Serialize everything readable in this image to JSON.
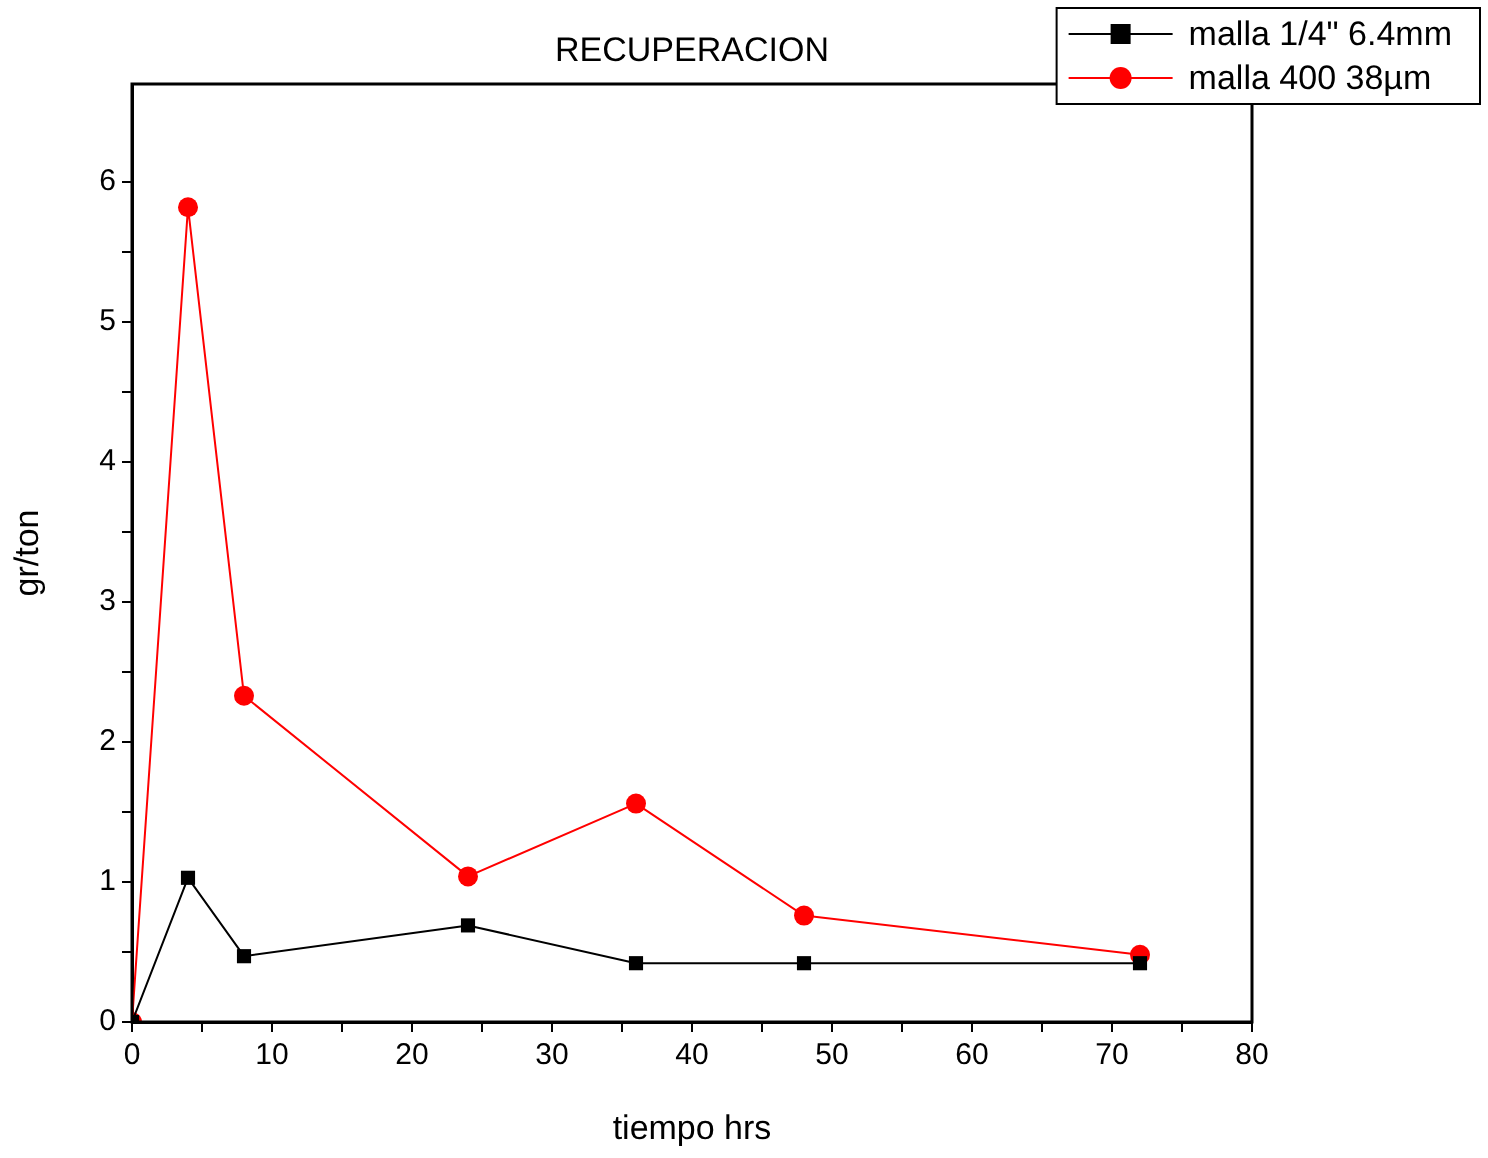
{
  "chart_data": {
    "type": "line",
    "title": "RECUPERACION",
    "xlabel": "tiempo hrs",
    "ylabel": "gr/ton",
    "x": [
      0,
      4,
      8,
      24,
      36,
      48,
      72
    ],
    "series": [
      {
        "name": "malla 1/4\" 6.4mm",
        "color": "#000000",
        "marker": "square",
        "values": [
          0,
          1.03,
          0.47,
          0.69,
          0.42,
          0.42,
          0.42
        ]
      },
      {
        "name": "malla 400 38µm",
        "color": "#ff0000",
        "marker": "circle",
        "values": [
          0,
          5.82,
          2.33,
          1.04,
          1.56,
          0.76,
          0.48
        ]
      }
    ],
    "xlim": [
      0,
      80
    ],
    "ylim": [
      0,
      6.7
    ],
    "xticks": [
      0,
      {
        "value": 5,
        "label": null
      },
      10,
      {
        "value": 15,
        "label": null
      },
      20,
      {
        "value": 25,
        "label": null
      },
      30,
      {
        "value": 35,
        "label": null
      },
      40,
      {
        "value": 45,
        "label": null
      },
      50,
      {
        "value": 55,
        "label": null
      },
      60,
      {
        "value": 65,
        "label": null
      },
      70,
      {
        "value": 75,
        "label": null
      },
      80
    ],
    "yticks": [
      0,
      {
        "value": 0.5,
        "label": null
      },
      1,
      {
        "value": 1.5,
        "label": null
      },
      2,
      {
        "value": 2.5,
        "label": null
      },
      3,
      {
        "value": 3.5,
        "label": null
      },
      4,
      {
        "value": 4.5,
        "label": null
      },
      5,
      {
        "value": 5.5,
        "label": null
      },
      6
    ],
    "grid": false,
    "legend": "top right",
    "line_style": "solid"
  }
}
